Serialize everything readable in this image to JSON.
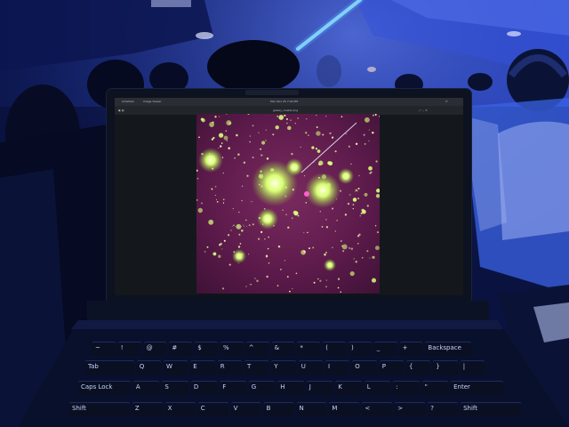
{
  "laptop_screen": {
    "menu_title": "Activities",
    "app_menu": "Image Viewer",
    "clock": "Mon Nov 25  7:44 PM",
    "window_title": "galaxy_cluster.png"
  },
  "keyboard": {
    "row1": [
      "~",
      "!",
      "@",
      "#",
      "$",
      "%",
      "^",
      "&",
      "*",
      "(",
      ")",
      "_",
      "+",
      "Backspace"
    ],
    "row2": [
      "Tab",
      "Q",
      "W",
      "E",
      "R",
      "T",
      "Y",
      "U",
      "I",
      "O",
      "P",
      "{",
      "}",
      "|"
    ],
    "row3": [
      "Caps Lock",
      "A",
      "S",
      "D",
      "F",
      "G",
      "H",
      "J",
      "K",
      "L",
      ":",
      "\"",
      "Enter"
    ],
    "row4": [
      "Shift",
      "Z",
      "X",
      "C",
      "V",
      "B",
      "N",
      "M",
      "<",
      ">",
      "?",
      "Shift"
    ]
  },
  "colors": {
    "cabin": "#0b1448",
    "cabin_light": "#3f6cf2",
    "screen_bg": "#101418",
    "nebula": "#5b1a4a",
    "galaxy_glow": "#d9ff73"
  }
}
